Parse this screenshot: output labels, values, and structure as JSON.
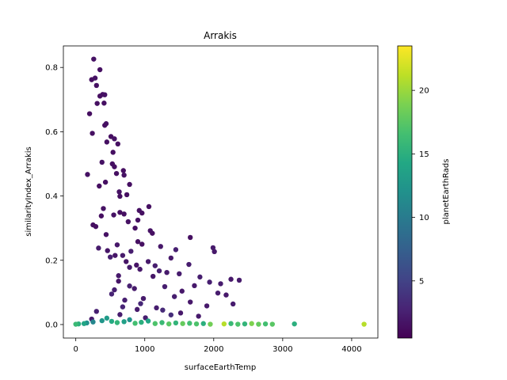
{
  "chart_data": {
    "type": "scatter",
    "title": "Arrakis",
    "xlabel": "surfaceEarthTemp",
    "ylabel": "similarityIndex_Arrakis",
    "colorbar_label": "planetEarthRads",
    "xlim": [
      -180,
      4380
    ],
    "ylim": [
      -0.042,
      0.867
    ],
    "x_ticks": [
      0,
      1000,
      2000,
      3000,
      4000
    ],
    "x_tick_labels": [
      "0",
      "1000",
      "2000",
      "3000",
      "4000"
    ],
    "y_ticks": [
      0.0,
      0.2,
      0.4,
      0.6,
      0.8
    ],
    "y_tick_labels": [
      "0.0",
      "0.2",
      "0.4",
      "0.6",
      "0.8"
    ],
    "color_range": [
      0.5,
      23.5
    ],
    "colorbar_ticks": [
      5,
      10,
      15,
      20
    ],
    "colorbar_tick_labels": [
      "5",
      "10",
      "15",
      "20"
    ],
    "colormap": "viridis",
    "grid": false,
    "points": [
      [
        260,
        0.826,
        1.6
      ],
      [
        350,
        0.793,
        1.5
      ],
      [
        230,
        0.762,
        1.4
      ],
      [
        280,
        0.767,
        1.6
      ],
      [
        300,
        0.744,
        1.5
      ],
      [
        390,
        0.716,
        1.5
      ],
      [
        350,
        0.711,
        1.4
      ],
      [
        420,
        0.715,
        1.6
      ],
      [
        310,
        0.688,
        1.5
      ],
      [
        410,
        0.689,
        1.5
      ],
      [
        200,
        0.656,
        1.4
      ],
      [
        440,
        0.625,
        1.6
      ],
      [
        420,
        0.62,
        1.5
      ],
      [
        240,
        0.595,
        1.5
      ],
      [
        510,
        0.585,
        1.4
      ],
      [
        560,
        0.578,
        1.6
      ],
      [
        450,
        0.568,
        1.5
      ],
      [
        610,
        0.562,
        1.5
      ],
      [
        540,
        0.536,
        1.4
      ],
      [
        380,
        0.505,
        1.6
      ],
      [
        530,
        0.5,
        1.5
      ],
      [
        560,
        0.491,
        1.5
      ],
      [
        690,
        0.479,
        1.4
      ],
      [
        170,
        0.467,
        1.6
      ],
      [
        590,
        0.47,
        1.5
      ],
      [
        700,
        0.465,
        1.6
      ],
      [
        430,
        0.443,
        1.5
      ],
      [
        340,
        0.431,
        1.4
      ],
      [
        780,
        0.436,
        1.5
      ],
      [
        630,
        0.413,
        1.6
      ],
      [
        640,
        0.399,
        1.5
      ],
      [
        740,
        0.404,
        1.4
      ],
      [
        1060,
        0.367,
        1.5
      ],
      [
        400,
        0.361,
        1.6
      ],
      [
        920,
        0.355,
        1.5
      ],
      [
        640,
        0.349,
        1.4
      ],
      [
        700,
        0.344,
        1.5
      ],
      [
        550,
        0.341,
        1.6
      ],
      [
        960,
        0.347,
        1.5
      ],
      [
        370,
        0.338,
        1.4
      ],
      [
        900,
        0.325,
        1.5
      ],
      [
        760,
        0.32,
        1.6
      ],
      [
        250,
        0.31,
        1.5
      ],
      [
        290,
        0.305,
        1.4
      ],
      [
        860,
        0.3,
        1.5
      ],
      [
        1080,
        0.292,
        1.6
      ],
      [
        1110,
        0.284,
        1.5
      ],
      [
        1660,
        0.271,
        1.4
      ],
      [
        440,
        0.28,
        1.6
      ],
      [
        900,
        0.258,
        1.5
      ],
      [
        960,
        0.25,
        1.5
      ],
      [
        600,
        0.248,
        2.0
      ],
      [
        330,
        0.238,
        2.2
      ],
      [
        1230,
        0.243,
        2.0
      ],
      [
        1450,
        0.233,
        2.5
      ],
      [
        1990,
        0.239,
        2.2
      ],
      [
        2010,
        0.227,
        2.0
      ],
      [
        800,
        0.228,
        2.4
      ],
      [
        680,
        0.215,
        2.2
      ],
      [
        500,
        0.21,
        2.5
      ],
      [
        1380,
        0.207,
        2.0
      ],
      [
        1640,
        0.187,
        2.3
      ],
      [
        1050,
        0.196,
        2.1
      ],
      [
        1150,
        0.183,
        2.4
      ],
      [
        780,
        0.178,
        2.2
      ],
      [
        930,
        0.172,
        2.0
      ],
      [
        1210,
        0.167,
        2.5
      ],
      [
        1320,
        0.162,
        2.2
      ],
      [
        1500,
        0.158,
        2.3
      ],
      [
        620,
        0.152,
        2.1
      ],
      [
        1800,
        0.148,
        2.4
      ],
      [
        2250,
        0.141,
        2.0
      ],
      [
        2370,
        0.138,
        2.2
      ],
      [
        1940,
        0.132,
        2.5
      ],
      [
        2100,
        0.127,
        2.3
      ],
      [
        1720,
        0.121,
        2.1
      ],
      [
        1290,
        0.118,
        2.4
      ],
      [
        850,
        0.112,
        2.2
      ],
      [
        560,
        0.108,
        2.5
      ],
      [
        1540,
        0.104,
        2.0
      ],
      [
        2060,
        0.098,
        2.3
      ],
      [
        2180,
        0.092,
        2.1
      ],
      [
        1430,
        0.087,
        2.4
      ],
      [
        980,
        0.081,
        2.2
      ],
      [
        710,
        0.076,
        2.5
      ],
      [
        1660,
        0.07,
        2.0
      ],
      [
        2280,
        0.064,
        2.3
      ],
      [
        1900,
        0.058,
        2.1
      ],
      [
        1170,
        0.052,
        2.4
      ],
      [
        890,
        0.047,
        2.2
      ],
      [
        300,
        0.041,
        2.5
      ],
      [
        1520,
        0.036,
        2.0
      ],
      [
        640,
        0.031,
        2.3
      ],
      [
        1780,
        0.026,
        2.1
      ],
      [
        1010,
        0.021,
        2.4
      ],
      [
        230,
        0.017,
        2.2
      ],
      [
        460,
        0.23,
        1.8
      ],
      [
        570,
        0.215,
        1.9
      ],
      [
        730,
        0.196,
        1.8
      ],
      [
        880,
        0.185,
        1.7
      ],
      [
        1120,
        0.15,
        1.9
      ],
      [
        620,
        0.135,
        1.8
      ],
      [
        780,
        0.12,
        2.6
      ],
      [
        520,
        0.095,
        2.8
      ],
      [
        940,
        0.065,
        3.0
      ],
      [
        1260,
        0.045,
        3.2
      ],
      [
        680,
        0.055,
        2.9
      ],
      [
        1380,
        0.03,
        3.5
      ],
      [
        160,
        0.005,
        12.0
      ],
      [
        120,
        0.003,
        14.0
      ],
      [
        40,
        0.002,
        15.0
      ],
      [
        0,
        0.001,
        16.0
      ],
      [
        250,
        0.008,
        11.0
      ],
      [
        380,
        0.012,
        12.5
      ],
      [
        450,
        0.02,
        13.0
      ],
      [
        520,
        0.01,
        14.5
      ],
      [
        600,
        0.006,
        15.5
      ],
      [
        700,
        0.009,
        13.5
      ],
      [
        780,
        0.015,
        12.0
      ],
      [
        860,
        0.004,
        16.5
      ],
      [
        950,
        0.007,
        15.0
      ],
      [
        1050,
        0.011,
        14.0
      ],
      [
        1150,
        0.003,
        17.0
      ],
      [
        1250,
        0.006,
        16.0
      ],
      [
        1350,
        0.002,
        17.5
      ],
      [
        1450,
        0.005,
        15.5
      ],
      [
        1550,
        0.003,
        18.0
      ],
      [
        1650,
        0.004,
        16.5
      ],
      [
        1750,
        0.002,
        17.0
      ],
      [
        1850,
        0.003,
        15.0
      ],
      [
        1950,
        0.001,
        18.5
      ],
      [
        2150,
        0.002,
        21.0
      ],
      [
        2250,
        0.003,
        16.0
      ],
      [
        2350,
        0.001,
        17.0
      ],
      [
        2450,
        0.002,
        15.5
      ],
      [
        2550,
        0.003,
        19.0
      ],
      [
        2650,
        0.001,
        18.0
      ],
      [
        2750,
        0.002,
        16.5
      ],
      [
        2850,
        0.001,
        17.5
      ],
      [
        3170,
        0.002,
        15.0
      ],
      [
        4180,
        0.001,
        21.0
      ]
    ]
  }
}
